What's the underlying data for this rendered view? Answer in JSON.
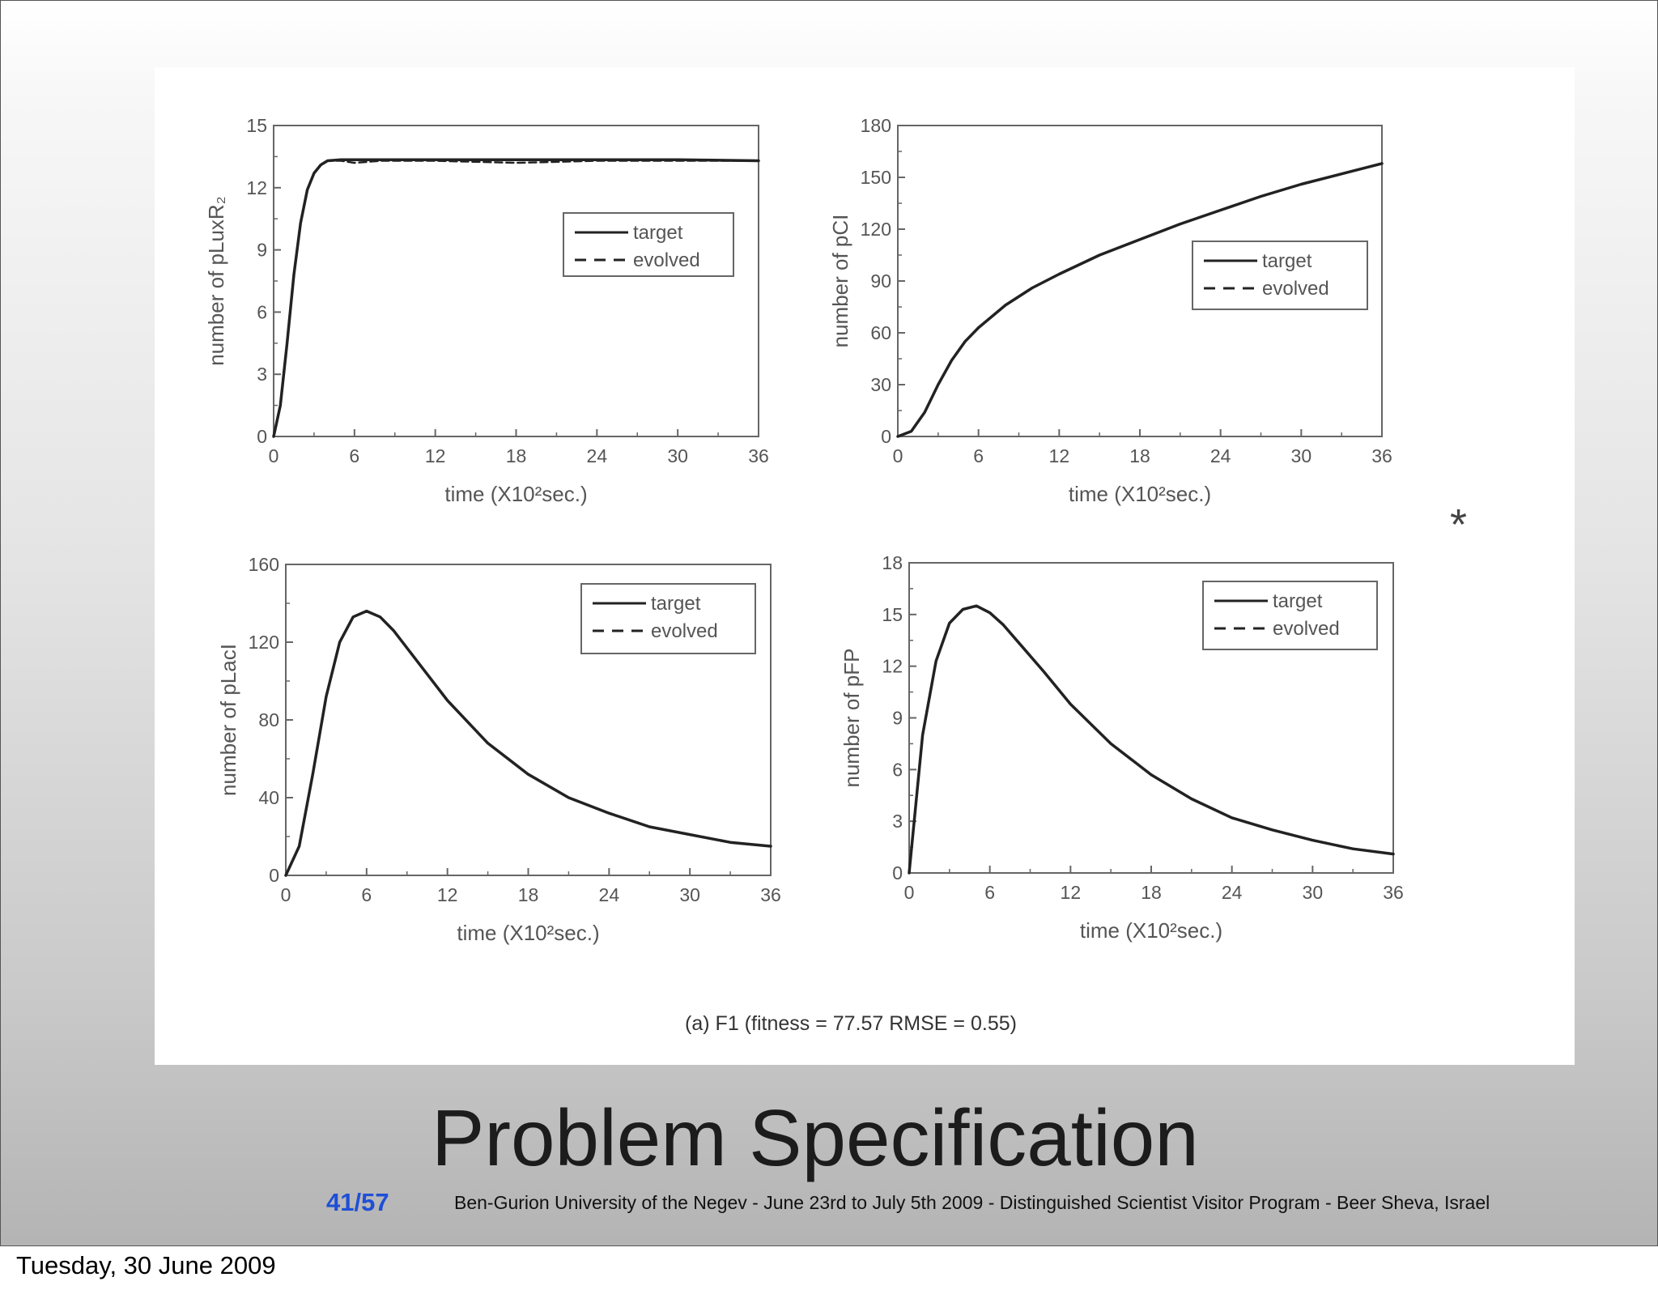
{
  "slide": {
    "title": "Problem Specification",
    "page_current": "41",
    "page_sep": "/",
    "page_total": "57",
    "footer": "Ben-Gurion University of the Negev - June 23rd to July 5th 2009 -  Distinguished Scientist Visitor Program - Beer Sheva, Israel",
    "marker": "*",
    "date": "Tuesday, 30 June 2009"
  },
  "figure": {
    "caption": "(a) F1 (fitness = 77.57  RMSE = 0.55)"
  },
  "chart_data": [
    {
      "type": "line",
      "ylabel": "number of pLuxR₂",
      "xlabel": "time (X10²sec.)",
      "xlim": [
        0,
        36
      ],
      "ylim": [
        0,
        15
      ],
      "xticks": [
        0,
        6,
        12,
        18,
        24,
        30,
        36
      ],
      "yticks": [
        0,
        3,
        6,
        9,
        12,
        15
      ],
      "legend": "upper-right",
      "series": [
        {
          "name": "target",
          "style": "solid",
          "x": [
            0,
            0.5,
            1,
            1.5,
            2,
            2.5,
            3,
            3.5,
            4,
            5,
            6,
            8,
            12,
            18,
            24,
            30,
            36
          ],
          "y": [
            0,
            1.5,
            4.5,
            7.8,
            10.3,
            11.9,
            12.7,
            13.1,
            13.3,
            13.35,
            13.35,
            13.35,
            13.35,
            13.35,
            13.35,
            13.35,
            13.3
          ]
        },
        {
          "name": "evolved",
          "style": "dashed",
          "x": [
            0,
            0.5,
            1,
            1.5,
            2,
            2.5,
            3,
            3.5,
            4,
            5,
            6,
            8,
            12,
            18,
            24,
            30,
            36
          ],
          "y": [
            0,
            1.5,
            4.5,
            7.8,
            10.3,
            11.9,
            12.7,
            13.1,
            13.3,
            13.3,
            13.2,
            13.3,
            13.3,
            13.2,
            13.3,
            13.3,
            13.3
          ]
        }
      ]
    },
    {
      "type": "line",
      "ylabel": "number of pCI",
      "xlabel": "time (X10²sec.)",
      "xlim": [
        0,
        36
      ],
      "ylim": [
        0,
        180
      ],
      "xticks": [
        0,
        6,
        12,
        18,
        24,
        30,
        36
      ],
      "yticks": [
        0,
        30,
        60,
        90,
        120,
        150,
        180
      ],
      "legend": "middle-right",
      "series": [
        {
          "name": "target",
          "style": "solid",
          "x": [
            0,
            1,
            2,
            3,
            4,
            5,
            6,
            8,
            10,
            12,
            15,
            18,
            21,
            24,
            27,
            30,
            33,
            36
          ],
          "y": [
            0,
            3,
            14,
            30,
            44,
            55,
            63,
            76,
            86,
            94,
            105,
            114,
            123,
            131,
            139,
            146,
            152,
            158
          ]
        },
        {
          "name": "evolved",
          "style": "dashed",
          "x": [
            0,
            1,
            2,
            3,
            4,
            5,
            6,
            8,
            10,
            12,
            15,
            18,
            21,
            24,
            27,
            30,
            33,
            36
          ],
          "y": [
            0,
            3,
            14,
            30,
            44,
            55,
            63,
            76,
            86,
            94,
            105,
            114,
            123,
            131,
            139,
            146,
            152,
            158
          ]
        }
      ]
    },
    {
      "type": "line",
      "ylabel": "number of pLacI",
      "xlabel": "time (X10²sec.)",
      "xlim": [
        0,
        36
      ],
      "ylim": [
        0,
        160
      ],
      "xticks": [
        0,
        6,
        12,
        18,
        24,
        30,
        36
      ],
      "yticks": [
        0,
        40,
        80,
        120,
        160
      ],
      "legend": "upper-right",
      "series": [
        {
          "name": "target",
          "style": "solid",
          "x": [
            0,
            1,
            2,
            3,
            4,
            5,
            6,
            7,
            8,
            10,
            12,
            15,
            18,
            21,
            24,
            27,
            30,
            33,
            36
          ],
          "y": [
            0,
            15,
            52,
            92,
            120,
            133,
            136,
            133,
            126,
            108,
            90,
            68,
            52,
            40,
            32,
            25,
            21,
            17,
            15
          ]
        },
        {
          "name": "evolved",
          "style": "dashed",
          "x": [
            0,
            1,
            2,
            3,
            4,
            5,
            6,
            7,
            8,
            10,
            12,
            15,
            18,
            21,
            24,
            27,
            30,
            33,
            36
          ],
          "y": [
            0,
            15,
            52,
            92,
            120,
            133,
            136,
            133,
            126,
            108,
            90,
            68,
            52,
            40,
            32,
            25,
            21,
            17,
            15
          ]
        }
      ]
    },
    {
      "type": "line",
      "ylabel": "number of pFP",
      "xlabel": "time (X10²sec.)",
      "xlim": [
        0,
        36
      ],
      "ylim": [
        0,
        18
      ],
      "xticks": [
        0,
        6,
        12,
        18,
        24,
        30,
        36
      ],
      "yticks": [
        0,
        3,
        6,
        9,
        12,
        15,
        18
      ],
      "legend": "upper-right",
      "series": [
        {
          "name": "target",
          "style": "solid",
          "x": [
            0,
            0.5,
            1,
            2,
            3,
            4,
            5,
            6,
            7,
            8,
            10,
            12,
            15,
            18,
            21,
            24,
            27,
            30,
            33,
            36
          ],
          "y": [
            0,
            4,
            8,
            12.3,
            14.5,
            15.3,
            15.5,
            15.1,
            14.4,
            13.5,
            11.7,
            9.8,
            7.5,
            5.7,
            4.3,
            3.2,
            2.5,
            1.9,
            1.4,
            1.1
          ]
        },
        {
          "name": "evolved",
          "style": "dashed",
          "x": [
            0,
            0.5,
            1,
            2,
            3,
            4,
            5,
            6,
            7,
            8,
            10,
            12,
            15,
            18,
            21,
            24,
            27,
            30,
            33,
            36
          ],
          "y": [
            0,
            4,
            8,
            12.3,
            14.5,
            15.3,
            15.5,
            15.1,
            14.4,
            13.5,
            11.7,
            9.8,
            7.5,
            5.7,
            4.3,
            3.2,
            2.5,
            1.9,
            1.4,
            1.1
          ]
        }
      ]
    }
  ]
}
